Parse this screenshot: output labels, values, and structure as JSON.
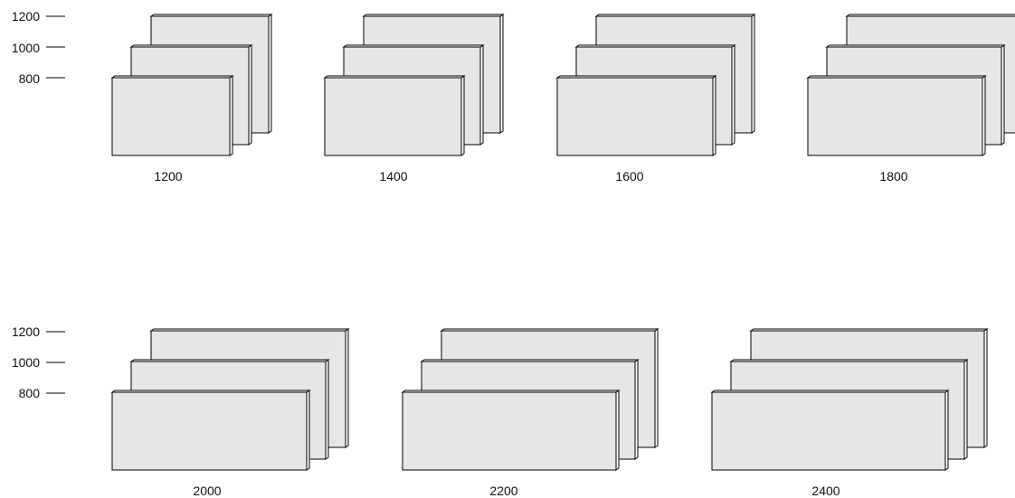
{
  "rows": [
    {
      "height_ticks": [
        "1200",
        "1000",
        "800"
      ],
      "groups": [
        {
          "label": "1200"
        },
        {
          "label": "1400"
        },
        {
          "label": "1600"
        },
        {
          "label": "1800"
        }
      ]
    },
    {
      "height_ticks": [
        "1200",
        "1000",
        "800"
      ],
      "groups": [
        {
          "label": "2000"
        },
        {
          "label": "2200"
        },
        {
          "label": "2400"
        }
      ]
    }
  ],
  "colors": {
    "panel_fill": "#e6e6e6",
    "panel_stroke": "#000000",
    "text": "#111111"
  }
}
